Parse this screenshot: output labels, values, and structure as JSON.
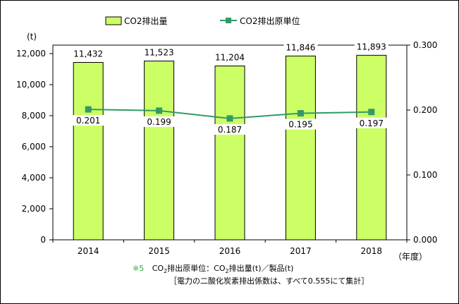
{
  "chart_data": {
    "type": "bar",
    "categories": [
      "2014",
      "2015",
      "2016",
      "2017",
      "2018"
    ],
    "series": [
      {
        "name": "CO2排出量",
        "type": "bar",
        "axis": "left",
        "values": [
          11432,
          11523,
          11204,
          11846,
          11893
        ],
        "labels": [
          "11,432",
          "11,523",
          "11,204",
          "11,846",
          "11,893"
        ],
        "color": "#ccff66"
      },
      {
        "name": "CO2排出原単位",
        "type": "line",
        "axis": "right",
        "values": [
          0.201,
          0.199,
          0.187,
          0.195,
          0.197
        ],
        "labels": [
          "0.201",
          "0.199",
          "0.187",
          "0.195",
          "0.197"
        ],
        "color": "#339966"
      }
    ],
    "y_left": {
      "unit": "(t)",
      "min": 0,
      "max": 12000,
      "ticks": [
        0,
        2000,
        4000,
        6000,
        8000,
        10000,
        12000
      ],
      "tick_labels": [
        "0",
        "2,000",
        "4,000",
        "6,000",
        "8,000",
        "10,000",
        "12,000"
      ]
    },
    "y_right": {
      "min": 0,
      "max": 0.3,
      "ticks": [
        0,
        0.1,
        0.2,
        0.3
      ],
      "tick_labels": [
        "0.000",
        "0.100",
        "0.200",
        "0.300"
      ]
    },
    "x_unit": "（年度）",
    "legend_position": "top",
    "grid": false,
    "colors": {
      "plot_background": "#ffffff",
      "bar_border": "#000000"
    }
  },
  "notes": {
    "mark": "※5",
    "line1_a": "CO",
    "line1_sub1": "2",
    "line1_b": "排出原単位：CO",
    "line1_sub2": "2",
    "line1_c": "排出量(t)／製品(t)",
    "line2": "［電力の二酸化炭素排出係数は、すべて0.555にて集計］"
  }
}
